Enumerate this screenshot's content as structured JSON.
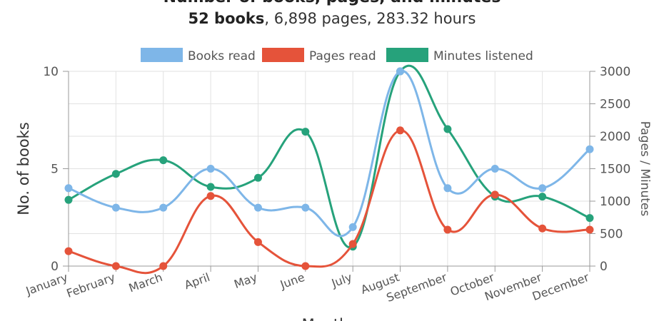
{
  "header": {
    "title": "Number of books, pages, and minutes",
    "summary_strong": "52 books",
    "summary_rest": ", 6,898 pages, 283.32 hours"
  },
  "colors": {
    "books": "#7eb6e8",
    "pages": "#e5533a",
    "minutes": "#26a27b",
    "grid": "#e2e2e2",
    "axis": "#9a9a9a",
    "text": "#555555"
  },
  "chart_data": {
    "type": "line",
    "categories": [
      "January",
      "February",
      "March",
      "April",
      "May",
      "June",
      "July",
      "August",
      "September",
      "October",
      "November",
      "December"
    ],
    "xlabel": "Months",
    "ylabel": "No. of books",
    "y2label": "Pages / Minutes",
    "ylim": [
      0,
      10
    ],
    "y2lim": [
      0,
      3000
    ],
    "yticks": [
      0,
      5,
      10
    ],
    "y2ticks": [
      0,
      500,
      1000,
      1500,
      2000,
      2500,
      3000
    ],
    "grid": true,
    "legend_position": "top",
    "series": [
      {
        "name": "Books read",
        "axis": "left",
        "color_key": "books",
        "values": [
          4,
          3,
          3,
          5,
          3,
          3,
          2,
          10,
          4,
          5,
          4,
          6
        ]
      },
      {
        "name": "Pages read",
        "axis": "right",
        "color_key": "pages",
        "values": [
          230,
          0,
          0,
          1080,
          370,
          0,
          340,
          2090,
          560,
          1100,
          580,
          560
        ]
      },
      {
        "name": "Minutes listened",
        "axis": "right",
        "color_key": "minutes",
        "values": [
          1020,
          1420,
          1630,
          1220,
          1360,
          2070,
          300,
          3000,
          2110,
          1070,
          1070,
          740
        ]
      }
    ]
  }
}
